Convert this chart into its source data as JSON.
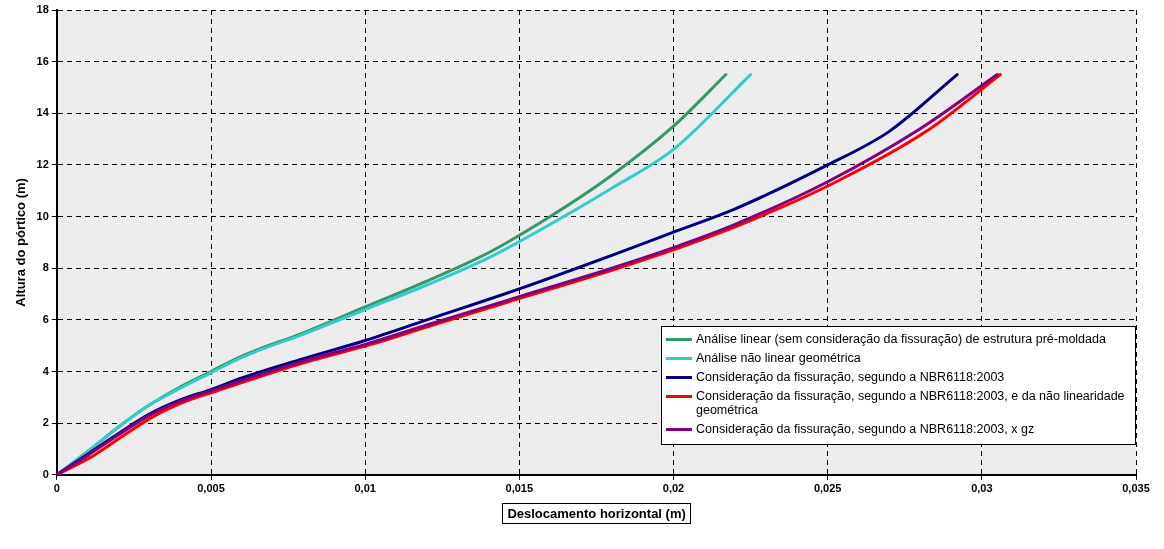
{
  "chart_data": {
    "type": "line",
    "xlabel": "Deslocamento horizontal (m)",
    "ylabel": "Altura do pórtico (m)",
    "xlim": [
      0,
      0.035
    ],
    "xticks": [
      0,
      {
        "value": 0.005,
        "label": "0,005"
      },
      {
        "value": 0.01,
        "label": "0,01"
      },
      {
        "value": 0.015,
        "label": "0,015"
      },
      {
        "value": 0.02,
        "label": "0,02"
      },
      {
        "value": 0.025,
        "label": "0,025"
      },
      {
        "value": 0.03,
        "label": "0,03"
      },
      {
        "value": 0.035,
        "label": "0,035"
      }
    ],
    "ylim": [
      0,
      18
    ],
    "yticks": [
      0,
      2,
      4,
      6,
      8,
      10,
      12,
      14,
      16,
      18
    ],
    "grid": true,
    "legend": "bottom right",
    "marker": "none",
    "line_style": "solid",
    "series": [
      {
        "name": "Análise linear (sem consideração da fissuração) de estrutura pré-moldada",
        "color": "#339966",
        "x": [
          0,
          0.001,
          0.002,
          0.003,
          0.004,
          0.005,
          0.006,
          0.008,
          0.01,
          0.012,
          0.014,
          0.016,
          0.018,
          0.02,
          0.0217
        ],
        "values": [
          0,
          0.9,
          1.85,
          2.7,
          3.4,
          4.0,
          4.6,
          5.5,
          6.5,
          7.5,
          8.6,
          10.0,
          11.6,
          13.5,
          15.5
        ]
      },
      {
        "name": "Análise não linear geométrica",
        "color": "#33cccc",
        "x": [
          0,
          0.001,
          0.002,
          0.003,
          0.004,
          0.005,
          0.006,
          0.008,
          0.01,
          0.012,
          0.014,
          0.016,
          0.018,
          0.02,
          0.0225
        ],
        "values": [
          0,
          0.9,
          1.85,
          2.7,
          3.35,
          3.95,
          4.55,
          5.45,
          6.4,
          7.35,
          8.4,
          9.7,
          11.1,
          12.6,
          15.5
        ]
      },
      {
        "name": "Consideração da fissuração, segundo a NBR6118:2003",
        "color": "#000080",
        "x": [
          0,
          0.001,
          0.002,
          0.003,
          0.004,
          0.005,
          0.006,
          0.008,
          0.01,
          0.012,
          0.015,
          0.018,
          0.02,
          0.022,
          0.025,
          0.027,
          0.0292
        ],
        "values": [
          0,
          0.8,
          1.6,
          2.35,
          2.9,
          3.3,
          3.75,
          4.5,
          5.2,
          6.0,
          7.2,
          8.5,
          9.4,
          10.3,
          12.0,
          13.3,
          15.5
        ]
      },
      {
        "name": "Consideração da fissuração, segundo a NBR6118:2003, e da não linearidade geométrica",
        "color": "#ff0000",
        "x": [
          0,
          0.0012,
          0.0022,
          0.0032,
          0.0042,
          0.0052,
          0.0062,
          0.0082,
          0.0102,
          0.0122,
          0.0152,
          0.0182,
          0.0202,
          0.0222,
          0.0252,
          0.0282,
          0.0306
        ],
        "values": [
          0,
          0.75,
          1.55,
          2.3,
          2.85,
          3.25,
          3.65,
          4.4,
          5.05,
          5.8,
          6.9,
          8.0,
          8.8,
          9.7,
          11.3,
          13.3,
          15.5
        ]
      },
      {
        "name": "Consideração da fissuração, segundo a NBR6118:2003, x gz",
        "color": "#800080",
        "x": [
          0,
          0.001,
          0.002,
          0.003,
          0.004,
          0.005,
          0.006,
          0.008,
          0.01,
          0.012,
          0.015,
          0.018,
          0.02,
          0.022,
          0.025,
          0.028,
          0.0305
        ],
        "values": [
          0,
          0.75,
          1.55,
          2.3,
          2.85,
          3.25,
          3.65,
          4.4,
          5.05,
          5.8,
          6.9,
          8.0,
          8.8,
          9.7,
          11.35,
          13.4,
          15.5
        ]
      }
    ]
  }
}
